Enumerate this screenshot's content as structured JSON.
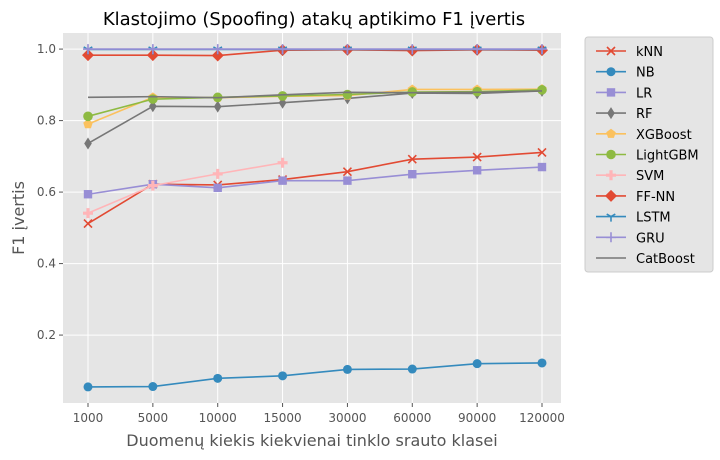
{
  "chart_data": {
    "type": "line",
    "title": "Klastojimo (Spoofing) atakų aptikimo F1 įvertis",
    "xlabel": "Duomenų kiekis kiekvienai tinklo srauto klasei",
    "ylabel": "F1 įvertis",
    "categories": [
      "1000",
      "5000",
      "10000",
      "15000",
      "30000",
      "60000",
      "90000",
      "120000"
    ],
    "yticks": [
      "0.2",
      "0.4",
      "0.6",
      "0.8",
      "1.0"
    ],
    "ylim": [
      0.01,
      1.045
    ],
    "grid": true,
    "legend_position": "outside-right",
    "series": [
      {
        "name": "kNN",
        "color": "#E24A33",
        "marker": "x",
        "values": [
          0.512,
          0.622,
          0.62,
          0.635,
          0.657,
          0.692,
          0.698,
          0.711
        ]
      },
      {
        "name": "NB",
        "color": "#348ABD",
        "marker": "circle",
        "values": [
          0.055,
          0.056,
          0.079,
          0.086,
          0.104,
          0.105,
          0.12,
          0.122
        ]
      },
      {
        "name": "LR",
        "color": "#988ED5",
        "marker": "square",
        "values": [
          0.594,
          0.622,
          0.612,
          0.632,
          0.632,
          0.65,
          0.661,
          0.67
        ]
      },
      {
        "name": "RF",
        "color": "#777777",
        "marker": "thin_diamond",
        "values": [
          0.736,
          0.84,
          0.839,
          0.85,
          0.862,
          0.877,
          0.876,
          0.883
        ]
      },
      {
        "name": "XGBoost",
        "color": "#FBC15E",
        "marker": "pentagon",
        "values": [
          0.79,
          0.865,
          0.864,
          0.868,
          0.87,
          0.887,
          0.887,
          0.888
        ]
      },
      {
        "name": "LightGBM",
        "color": "#8EBA42",
        "marker": "octagon",
        "values": [
          0.812,
          0.86,
          0.865,
          0.869,
          0.873,
          0.88,
          0.881,
          0.886
        ]
      },
      {
        "name": "SVM",
        "color": "#FFB5B8",
        "marker": "plus_filled",
        "values": [
          0.541,
          0.618,
          0.651,
          0.682,
          null,
          null,
          null,
          null
        ]
      },
      {
        "name": "FF-NN",
        "color": "#E24A33",
        "marker": "diamond",
        "values": [
          0.983,
          0.983,
          0.982,
          0.997,
          0.998,
          0.996,
          0.998,
          0.997
        ]
      },
      {
        "name": "LSTM",
        "color": "#348ABD",
        "marker": "tri_down",
        "values": [
          0.999,
          0.999,
          0.999,
          0.999,
          0.999,
          0.999,
          0.999,
          0.999
        ]
      },
      {
        "name": "GRU",
        "color": "#988ED5",
        "marker": "plus",
        "values": [
          1.0,
          1.0,
          1.0,
          1.0,
          1.0,
          1.0,
          1.0,
          1.0
        ]
      },
      {
        "name": "CatBoost",
        "color": "#777777",
        "marker": "none",
        "values": [
          0.865,
          0.867,
          0.864,
          0.872,
          0.879,
          0.878,
          0.879,
          0.883
        ]
      }
    ]
  }
}
